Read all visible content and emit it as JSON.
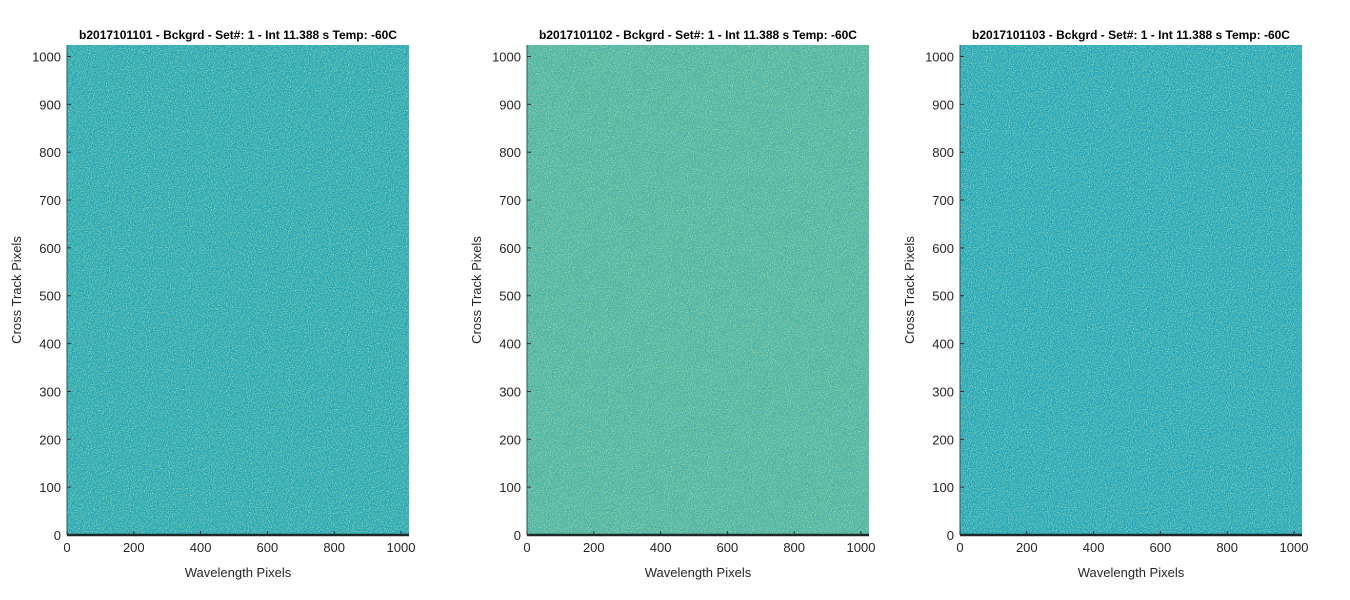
{
  "chart_data": [
    {
      "type": "heatmap",
      "title": "b2017101101 - Bckgrd - Set#: 1 - Int 11.388 s Temp: -60C",
      "xlabel": "Wavelength Pixels",
      "ylabel": "Cross Track Pixels",
      "xlim": [
        0,
        1024
      ],
      "ylim": [
        0,
        1024
      ],
      "xticks": [
        0,
        200,
        400,
        600,
        800,
        1000
      ],
      "yticks": [
        0,
        100,
        200,
        300,
        400,
        500,
        600,
        700,
        800,
        900,
        1000
      ],
      "color": "#22a5b0"
    },
    {
      "type": "heatmap",
      "title": "b2017101102 - Bckgrd - Set#: 1 - Int 11.388 s Temp: -60C",
      "xlabel": "Wavelength Pixels",
      "ylabel": "Cross Track Pixels",
      "xlim": [
        0,
        1024
      ],
      "ylim": [
        0,
        1024
      ],
      "xticks": [
        0,
        200,
        400,
        600,
        800,
        1000
      ],
      "yticks": [
        0,
        100,
        200,
        300,
        400,
        500,
        600,
        700,
        800,
        900,
        1000
      ],
      "color": "#4fb39b"
    },
    {
      "type": "heatmap",
      "title": "b2017101103 - Bckgrd - Set#: 1 - Int 11.388 s Temp: -60C",
      "xlabel": "Wavelength Pixels",
      "ylabel": "Cross Track Pixels",
      "xlim": [
        0,
        1024
      ],
      "ylim": [
        0,
        1024
      ],
      "xticks": [
        0,
        200,
        400,
        600,
        800,
        1000
      ],
      "yticks": [
        0,
        100,
        200,
        300,
        400,
        500,
        600,
        700,
        800,
        900,
        1000
      ],
      "color": "#1fa4b6"
    }
  ]
}
